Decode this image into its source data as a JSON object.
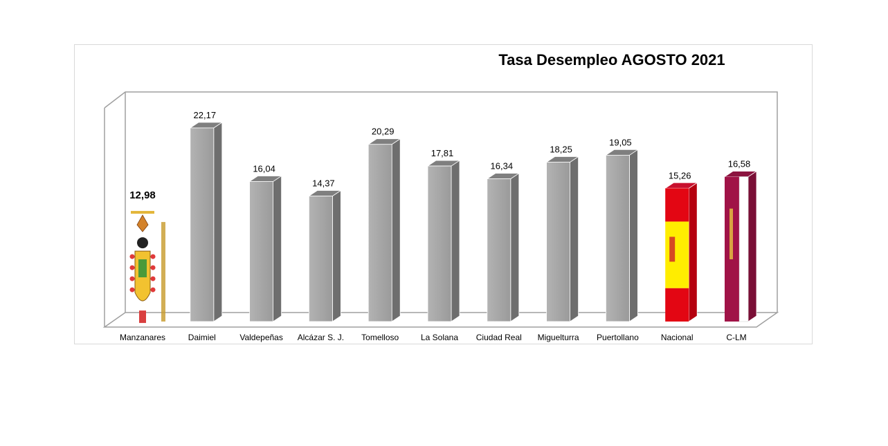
{
  "chart_data": {
    "type": "bar",
    "style": "3d-column",
    "title": "Tasa Desempleo AGOSTO 2021",
    "xlabel": "",
    "ylabel": "",
    "ylim": [
      0,
      25
    ],
    "grid": false,
    "legend": "none",
    "categories": [
      "Manzanares",
      "Daimiel",
      "Valdepeñas",
      "Alcázar S. J.",
      "Tomelloso",
      "La Solana",
      "Ciudad Real",
      "Miguelturra",
      "Puertollano",
      "Nacional",
      "C-LM"
    ],
    "values": [
      12.98,
      22.17,
      16.04,
      14.37,
      20.29,
      17.81,
      16.34,
      18.25,
      19.05,
      15.26,
      16.58
    ],
    "value_labels": [
      "12,98",
      "22,17",
      "16,04",
      "14,37",
      "20,29",
      "17,81",
      "16,34",
      "18,25",
      "19,05",
      "15,26",
      "16,58"
    ],
    "highlight": "Manzanares",
    "bar_fills": [
      "coat-of-arms",
      "gray",
      "gray",
      "gray",
      "gray",
      "gray",
      "gray",
      "gray",
      "gray",
      "spain-flag",
      "clm-flag"
    ]
  },
  "colors": {
    "bar_front": "#a6a6a6",
    "bar_side": "#6e6e6e",
    "bar_top": "#7f7f7f",
    "axis_line": "#9f9f9f",
    "spain_red": "#e30613",
    "spain_yellow": "#ffed00",
    "clm_crimson": "#a01347"
  }
}
